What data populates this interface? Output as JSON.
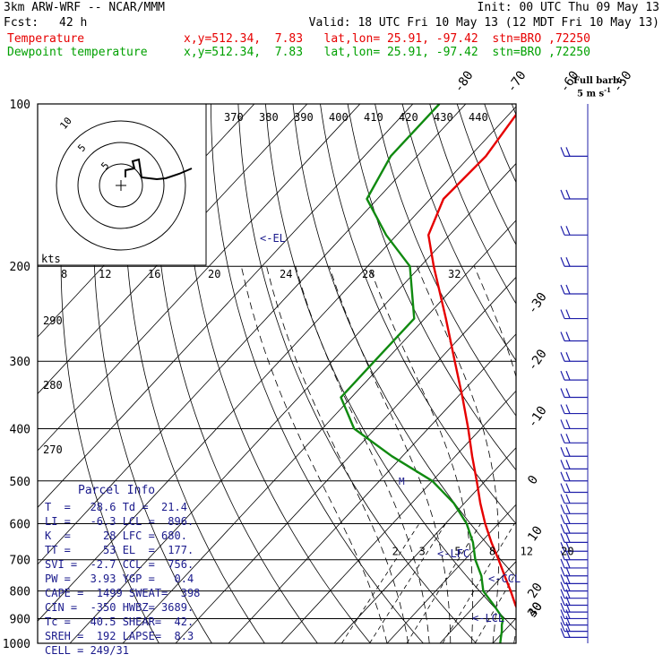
{
  "header": {
    "model": "3km ARW-WRF -- NCAR/MMM",
    "init": "Init: 00 UTC Thu 09 May 13",
    "fcst_label": "Fcst:",
    "fcst_value": "42 h",
    "valid": "Valid: 18 UTC Fri 10 May 13 (12 MDT Fri 10 May 13)",
    "temp_label": "Temperature",
    "temp_info": "x,y=512.34,  7.83   lat,lon= 25.91, -97.42  stn=BRO ,72250",
    "dew_label": "Dewpoint temperature",
    "dew_info": "x,y=512.34,  7.83   lat,lon= 25.91, -97.42  stn=BRO ,72250"
  },
  "parcel_info": {
    "title": "Parcel Info",
    "lines": [
      "T  =   28.6 Td =  21.4",
      "LI =   -6.3 LCL =  896.",
      "K  =     28 LFC = 680.",
      "TT =     53 EL  =  177.",
      "SVI =  -2.7 CCL =  756.",
      "PW =   3.93 YGP =   0.4",
      "CAPE =  1499 SWEAT=  398",
      "CIN =  -350 HWBZ= 3689.",
      "Tc =   40.5 SHEAR=  42.",
      "SREH =  192 LAPSE=  8.3",
      "CELL = 249/31"
    ]
  },
  "barb_legend": {
    "line1": "Full barb:",
    "line2": "5 m s",
    "exp": "-1"
  },
  "hodograph": {
    "units": "kts",
    "ring_labels": [
      "8",
      "12",
      "16",
      "20",
      "24",
      "28",
      "32"
    ]
  },
  "annotations": {
    "el": "<-EL",
    "lfc": "<-LFC",
    "ccl": "<-CCL",
    "lcl": "<-LCL",
    "m": "M"
  },
  "colors": {
    "temperature": "#e60000",
    "dewpoint": "#108a10",
    "axes": "#000000",
    "thin": "#444444"
  },
  "chart_data": {
    "type": "line",
    "subtype": "skew-T log-p",
    "y_axis": {
      "pressure_hPa": [
        100,
        200,
        300,
        400,
        500,
        600,
        700,
        800,
        900,
        1000
      ],
      "scale": "log",
      "ylim": [
        1000,
        100
      ]
    },
    "isotherm_labels": [
      "-80",
      "-70",
      "-60",
      "-50",
      "-40",
      "-30",
      "-20",
      "-10",
      "0",
      "10",
      "20",
      "30",
      "40"
    ],
    "theta_labels_top": [
      "370",
      "380",
      "390",
      "400",
      "410",
      "420",
      "430",
      "440"
    ],
    "theta_labels_left": [
      "290",
      "280",
      "270"
    ],
    "mixing_ratio_labels": [
      "2",
      "3",
      "5",
      "8",
      "12",
      "20"
    ],
    "series": [
      {
        "name": "Temperature",
        "color": "#e60000",
        "points": [
          {
            "p": 1000,
            "t": 28.6
          },
          {
            "p": 975,
            "t": 26.0
          },
          {
            "p": 950,
            "t": 24.5
          },
          {
            "p": 925,
            "t": 22.8
          },
          {
            "p": 900,
            "t": 21.2
          },
          {
            "p": 850,
            "t": 17.6
          },
          {
            "p": 800,
            "t": 14.2
          },
          {
            "p": 750,
            "t": 10.4
          },
          {
            "p": 700,
            "t": 6.4
          },
          {
            "p": 650,
            "t": 2.0
          },
          {
            "p": 600,
            "t": -2.5
          },
          {
            "p": 550,
            "t": -7.0
          },
          {
            "p": 500,
            "t": -11.6
          },
          {
            "p": 450,
            "t": -16.8
          },
          {
            "p": 400,
            "t": -22.4
          },
          {
            "p": 350,
            "t": -29.0
          },
          {
            "p": 300,
            "t": -36.8
          },
          {
            "p": 250,
            "t": -46.0
          },
          {
            "p": 200,
            "t": -57.5
          },
          {
            "p": 175,
            "t": -64.0
          },
          {
            "p": 150,
            "t": -67.5
          },
          {
            "p": 125,
            "t": -67.0
          },
          {
            "p": 100,
            "t": -69.0
          }
        ]
      },
      {
        "name": "Dewpoint temperature",
        "color": "#108a10",
        "points": [
          {
            "p": 1000,
            "t": 21.4
          },
          {
            "p": 975,
            "t": 20.5
          },
          {
            "p": 950,
            "t": 19.6
          },
          {
            "p": 925,
            "t": 18.5
          },
          {
            "p": 900,
            "t": 17.6
          },
          {
            "p": 850,
            "t": 13.5
          },
          {
            "p": 800,
            "t": 9.0
          },
          {
            "p": 750,
            "t": 6.0
          },
          {
            "p": 700,
            "t": 2.0
          },
          {
            "p": 650,
            "t": -1.5
          },
          {
            "p": 600,
            "t": -6.0
          },
          {
            "p": 550,
            "t": -12.0
          },
          {
            "p": 500,
            "t": -20.0
          },
          {
            "p": 450,
            "t": -32.0
          },
          {
            "p": 400,
            "t": -44.0
          },
          {
            "p": 350,
            "t": -52.0
          },
          {
            "p": 300,
            "t": -52.0
          },
          {
            "p": 250,
            "t": -52.0
          },
          {
            "p": 200,
            "t": -62.0
          },
          {
            "p": 175,
            "t": -72.0
          },
          {
            "p": 150,
            "t": -82.0
          },
          {
            "p": 125,
            "t": -85.0
          },
          {
            "p": 100,
            "t": -85.0
          }
        ]
      }
    ]
  }
}
